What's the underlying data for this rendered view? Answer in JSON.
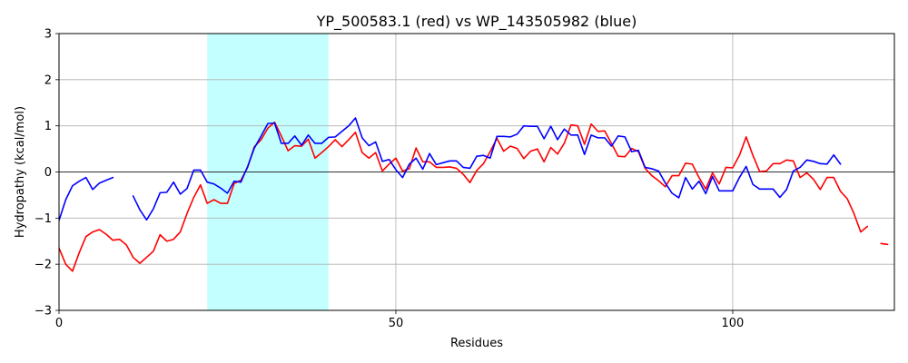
{
  "chart_data": {
    "type": "line",
    "title": "YP_500583.1 (red) vs WP_143505982 (blue)",
    "xlabel": "Residues",
    "ylabel": "Hydropathy (kcal/mol)",
    "xlim": [
      0,
      124
    ],
    "ylim": [
      -3,
      3
    ],
    "xticks": [
      0,
      50,
      100
    ],
    "yticks": [
      -3,
      -2,
      -1,
      0,
      1,
      2,
      3
    ],
    "grid": true,
    "zero_line": true,
    "highlight_region": {
      "x0": 22,
      "x1": 40,
      "color": "#c4ffff"
    },
    "series": [
      {
        "color": "#ff0000",
        "segments": [
          [
            [
              0,
              -1.65
            ],
            [
              1,
              -2.0
            ],
            [
              2,
              -2.15
            ],
            [
              3,
              -1.75
            ],
            [
              4,
              -1.4
            ],
            [
              5,
              -1.3
            ],
            [
              6,
              -1.25
            ],
            [
              7,
              -1.35
            ],
            [
              8,
              -1.48
            ],
            [
              9,
              -1.46
            ],
            [
              10,
              -1.58
            ],
            [
              11,
              -1.85
            ],
            [
              12,
              -1.98
            ],
            [
              13,
              -1.85
            ],
            [
              14,
              -1.72
            ],
            [
              15,
              -1.36
            ],
            [
              16,
              -1.5
            ],
            [
              17,
              -1.46
            ],
            [
              18,
              -1.3
            ],
            [
              19,
              -0.9
            ],
            [
              20,
              -0.55
            ],
            [
              21,
              -0.28
            ],
            [
              22,
              -0.68
            ],
            [
              23,
              -0.6
            ],
            [
              24,
              -0.68
            ],
            [
              25,
              -0.68
            ],
            [
              26,
              -0.25
            ],
            [
              27,
              -0.18
            ],
            [
              28,
              0.1
            ],
            [
              29,
              0.55
            ],
            [
              30,
              0.7
            ],
            [
              31,
              0.95
            ],
            [
              32,
              1.08
            ],
            [
              33,
              0.78
            ],
            [
              34,
              0.46
            ],
            [
              35,
              0.57
            ],
            [
              36,
              0.56
            ],
            [
              37,
              0.71
            ],
            [
              38,
              0.3
            ],
            [
              39,
              0.42
            ],
            [
              40,
              0.55
            ],
            [
              41,
              0.7
            ],
            [
              42,
              0.55
            ],
            [
              43,
              0.7
            ],
            [
              44,
              0.86
            ],
            [
              45,
              0.42
            ],
            [
              46,
              0.3
            ],
            [
              47,
              0.42
            ],
            [
              48,
              0.02
            ],
            [
              49,
              0.17
            ],
            [
              50,
              0.3
            ],
            [
              51,
              0.02
            ],
            [
              52,
              0.07
            ],
            [
              53,
              0.52
            ],
            [
              54,
              0.22
            ],
            [
              55,
              0.22
            ],
            [
              56,
              0.1
            ],
            [
              57,
              0.1
            ],
            [
              58,
              0.11
            ],
            [
              59,
              0.08
            ],
            [
              60,
              -0.05
            ],
            [
              61,
              -0.23
            ],
            [
              62,
              0.03
            ],
            [
              63,
              0.18
            ],
            [
              64,
              0.44
            ],
            [
              65,
              0.73
            ],
            [
              66,
              0.45
            ],
            [
              67,
              0.56
            ],
            [
              68,
              0.51
            ],
            [
              69,
              0.29
            ],
            [
              70,
              0.45
            ],
            [
              71,
              0.5
            ],
            [
              72,
              0.22
            ],
            [
              73,
              0.53
            ],
            [
              74,
              0.39
            ],
            [
              75,
              0.62
            ],
            [
              76,
              1.02
            ],
            [
              77,
              1.0
            ],
            [
              78,
              0.6
            ],
            [
              79,
              1.04
            ],
            [
              80,
              0.88
            ],
            [
              81,
              0.89
            ],
            [
              82,
              0.62
            ],
            [
              83,
              0.34
            ],
            [
              84,
              0.33
            ],
            [
              85,
              0.51
            ],
            [
              86,
              0.44
            ],
            [
              87,
              0.08
            ],
            [
              88,
              -0.08
            ],
            [
              89,
              -0.19
            ],
            [
              90,
              -0.32
            ],
            [
              91,
              -0.08
            ],
            [
              92,
              -0.08
            ],
            [
              93,
              0.19
            ],
            [
              94,
              0.17
            ],
            [
              95,
              -0.12
            ],
            [
              96,
              -0.37
            ],
            [
              97,
              -0.02
            ],
            [
              98,
              -0.26
            ],
            [
              99,
              0.1
            ],
            [
              100,
              0.09
            ],
            [
              101,
              0.36
            ],
            [
              102,
              0.76
            ],
            [
              103,
              0.36
            ],
            [
              104,
              0.01
            ],
            [
              105,
              0.02
            ],
            [
              106,
              0.18
            ],
            [
              107,
              0.18
            ],
            [
              108,
              0.26
            ],
            [
              109,
              0.24
            ],
            [
              110,
              -0.12
            ],
            [
              111,
              -0.02
            ],
            [
              112,
              -0.16
            ],
            [
              113,
              -0.38
            ],
            [
              114,
              -0.12
            ],
            [
              115,
              -0.12
            ],
            [
              116,
              -0.42
            ],
            [
              117,
              -0.58
            ],
            [
              118,
              -0.9
            ],
            [
              119,
              -1.3
            ],
            [
              120,
              -1.18
            ]
          ],
          [
            [
              122,
              -1.55
            ],
            [
              123,
              -1.57
            ]
          ]
        ]
      },
      {
        "color": "#0000ff",
        "segments": [
          [
            [
              0,
              -1.05
            ],
            [
              1,
              -0.6
            ],
            [
              2,
              -0.3
            ],
            [
              3,
              -0.2
            ],
            [
              4,
              -0.12
            ],
            [
              5,
              -0.38
            ],
            [
              6,
              -0.24
            ],
            [
              7,
              -0.18
            ],
            [
              8,
              -0.12
            ]
          ],
          [
            [
              11,
              -0.52
            ],
            [
              12,
              -0.82
            ],
            [
              13,
              -1.04
            ],
            [
              14,
              -0.8
            ],
            [
              15,
              -0.45
            ],
            [
              16,
              -0.44
            ],
            [
              17,
              -0.22
            ],
            [
              18,
              -0.48
            ],
            [
              19,
              -0.36
            ],
            [
              20,
              0.04
            ],
            [
              21,
              0.04
            ],
            [
              22,
              -0.22
            ],
            [
              23,
              -0.26
            ],
            [
              24,
              -0.35
            ],
            [
              25,
              -0.46
            ],
            [
              26,
              -0.2
            ],
            [
              27,
              -0.22
            ],
            [
              28,
              0.12
            ],
            [
              29,
              0.52
            ],
            [
              30,
              0.78
            ],
            [
              31,
              1.05
            ],
            [
              32,
              1.06
            ],
            [
              33,
              0.62
            ],
            [
              34,
              0.62
            ],
            [
              35,
              0.78
            ],
            [
              36,
              0.58
            ],
            [
              37,
              0.8
            ],
            [
              38,
              0.62
            ],
            [
              39,
              0.62
            ],
            [
              40,
              0.75
            ],
            [
              41,
              0.76
            ],
            [
              42,
              0.88
            ],
            [
              43,
              1.0
            ],
            [
              44,
              1.17
            ],
            [
              45,
              0.74
            ],
            [
              46,
              0.57
            ],
            [
              47,
              0.65
            ],
            [
              48,
              0.23
            ],
            [
              49,
              0.27
            ],
            [
              50,
              0.05
            ],
            [
              51,
              -0.12
            ],
            [
              52,
              0.17
            ],
            [
              53,
              0.3
            ],
            [
              54,
              0.06
            ],
            [
              55,
              0.4
            ],
            [
              56,
              0.16
            ],
            [
              57,
              0.2
            ],
            [
              58,
              0.24
            ],
            [
              59,
              0.24
            ],
            [
              60,
              0.1
            ],
            [
              61,
              0.08
            ],
            [
              62,
              0.34
            ],
            [
              63,
              0.36
            ],
            [
              64,
              0.3
            ],
            [
              65,
              0.77
            ],
            [
              66,
              0.77
            ],
            [
              67,
              0.76
            ],
            [
              68,
              0.82
            ],
            [
              69,
              1.0
            ],
            [
              70,
              0.99
            ],
            [
              71,
              0.99
            ],
            [
              72,
              0.72
            ],
            [
              73,
              0.99
            ],
            [
              74,
              0.7
            ],
            [
              75,
              0.93
            ],
            [
              76,
              0.8
            ],
            [
              77,
              0.8
            ],
            [
              78,
              0.38
            ],
            [
              79,
              0.8
            ],
            [
              80,
              0.74
            ],
            [
              81,
              0.74
            ],
            [
              82,
              0.56
            ],
            [
              83,
              0.78
            ],
            [
              84,
              0.76
            ],
            [
              85,
              0.44
            ],
            [
              86,
              0.47
            ],
            [
              87,
              0.1
            ],
            [
              88,
              0.07
            ],
            [
              89,
              0.02
            ],
            [
              90,
              -0.24
            ],
            [
              91,
              -0.46
            ],
            [
              92,
              -0.56
            ],
            [
              93,
              -0.12
            ],
            [
              94,
              -0.37
            ],
            [
              95,
              -0.2
            ],
            [
              96,
              -0.47
            ],
            [
              97,
              -0.1
            ],
            [
              98,
              -0.41
            ],
            [
              99,
              -0.41
            ],
            [
              100,
              -0.41
            ],
            [
              101,
              -0.12
            ],
            [
              102,
              0.12
            ],
            [
              103,
              -0.27
            ],
            [
              104,
              -0.37
            ],
            [
              105,
              -0.37
            ],
            [
              106,
              -0.37
            ],
            [
              107,
              -0.55
            ],
            [
              108,
              -0.38
            ],
            [
              109,
              0.02
            ],
            [
              110,
              0.1
            ],
            [
              111,
              0.26
            ],
            [
              112,
              0.23
            ],
            [
              113,
              0.18
            ],
            [
              114,
              0.17
            ],
            [
              115,
              0.37
            ],
            [
              116,
              0.17
            ]
          ]
        ]
      }
    ]
  }
}
